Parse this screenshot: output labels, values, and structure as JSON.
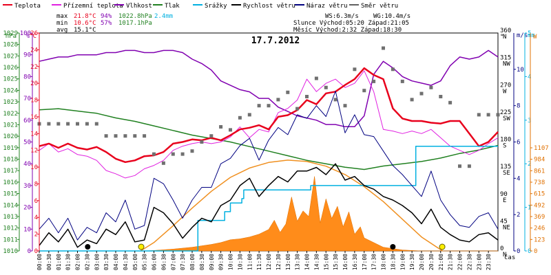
{
  "chart_data": {
    "type": "line",
    "title": "17.7.2012",
    "legend": [
      {
        "label": "Teplota",
        "color": "#e8001c"
      },
      {
        "label": "Přízemní teplota",
        "color": "#e020e0"
      },
      {
        "label": "Vlhkost",
        "color": "#8000b0"
      },
      {
        "label": "Tlak",
        "color": "#208020"
      },
      {
        "label": "Srážky",
        "color": "#00b0e0"
      },
      {
        "label": "Rychlost větru",
        "color": "#000000"
      },
      {
        "label": "Náraz větru",
        "color": "#000080"
      },
      {
        "label": "Směr větru",
        "color": "#606060"
      }
    ],
    "stats": {
      "max_label": "max",
      "max_temp": "21.8°C",
      "max_hum": "94%",
      "max_press": "1022.8hPa",
      "max_rain": "2.4mm",
      "min_label": "min",
      "min_temp": "10.6°C",
      "min_hum": "57%",
      "min_press": "1017.1hPa",
      "avg_label": "avg",
      "avg_temp": "15.1°C",
      "ws": "WS:6.3m/s",
      "wg": "WG:10.4m/s",
      "sun": "Slunce Východ:05:20  Západ:21:05",
      "moon": "Měsíc  Východ:2:32   Západ:18:30"
    },
    "axes": {
      "hpa": {
        "unit": "hPa",
        "min": 1010,
        "max": 1029,
        "ticks": [
          1010,
          1011,
          1012,
          1013,
          1014,
          1015,
          1016,
          1017,
          1018,
          1019,
          1020,
          1021,
          1022,
          1023,
          1024,
          1025,
          1026,
          1027,
          1028,
          1029
        ]
      },
      "pct": {
        "unit": "%",
        "min": 0,
        "max": 100,
        "ticks": [
          0,
          10,
          20,
          30,
          40,
          50,
          60,
          70,
          80,
          90,
          100
        ]
      },
      "temp": {
        "unit": "°C",
        "min": 0,
        "max": 26,
        "ticks": [
          0,
          2,
          4,
          6,
          8,
          10,
          12,
          14,
          16,
          18,
          20,
          22,
          24,
          26
        ]
      },
      "dir": {
        "unit": "°",
        "ticks": [
          {
            "deg": "0",
            "lbl": "N"
          },
          {
            "deg": "45",
            "lbl": "NE"
          },
          {
            "deg": "90",
            "lbl": "E"
          },
          {
            "deg": "135",
            "lbl": "SE"
          },
          {
            "deg": "180",
            "lbl": "S"
          },
          {
            "deg": "225",
            "lbl": "SW"
          },
          {
            "deg": "270",
            "lbl": "W"
          },
          {
            "deg": "315",
            "lbl": "NW"
          },
          {
            "deg": "360",
            "lbl": "N"
          }
        ]
      },
      "wind": {
        "unit": "m/s",
        "min": 0,
        "max": 12,
        "ticks": [
          0,
          2,
          4,
          6,
          8,
          10
        ]
      },
      "rain": {
        "unit": "mm",
        "min": 0,
        "max": 5,
        "ticks": [
          0,
          1,
          2,
          3,
          4,
          5
        ]
      },
      "solar": {
        "unit": "W",
        "ticks": [
          0,
          123,
          246,
          369,
          492,
          615,
          738,
          861,
          984,
          1107
        ]
      },
      "x_label": "čas",
      "x_ticks": [
        "00:00",
        "00:30",
        "01:00",
        "01:30",
        "02:00",
        "02:30",
        "03:00",
        "03:30",
        "04:00",
        "04:30",
        "05:00",
        "05:30",
        "06:00",
        "06:30",
        "07:00",
        "07:30",
        "08:00",
        "08:30",
        "09:00",
        "09:30",
        "10:00",
        "10:30",
        "11:00",
        "11:30",
        "12:00",
        "12:30",
        "13:00",
        "13:30",
        "14:00",
        "14:30",
        "15:00",
        "15:30",
        "16:00",
        "16:30",
        "17:00",
        "17:30",
        "18:00",
        "18:30",
        "19:00",
        "19:30",
        "20:00",
        "20:30",
        "21:00",
        "21:30",
        "22:00",
        "22:30",
        "23:00",
        "23:30"
      ]
    },
    "series": {
      "temperature": {
        "x": [
          0,
          0.5,
          1,
          1.5,
          2,
          2.5,
          3,
          3.5,
          4,
          4.5,
          5,
          5.5,
          6,
          6.5,
          7,
          7.5,
          8,
          8.5,
          9,
          9.5,
          10,
          10.5,
          11,
          11.5,
          12,
          12.5,
          13,
          13.5,
          14,
          14.5,
          15,
          15.5,
          16,
          16.5,
          17,
          17.5,
          18,
          18.5,
          19,
          19.5,
          20,
          20.5,
          21,
          21.5,
          22,
          22.5,
          23,
          23.5,
          24
        ],
        "y": [
          12.5,
          12.8,
          12.3,
          12.8,
          12.3,
          12.1,
          12.4,
          11.8,
          11.0,
          10.6,
          10.8,
          11.3,
          11.4,
          11.8,
          12.8,
          13.0,
          13.3,
          13.2,
          13.5,
          13.2,
          13.8,
          14.5,
          14.7,
          15.0,
          14.5,
          16.0,
          16.2,
          16.8,
          18.0,
          17.5,
          18.8,
          19.0,
          19.8,
          20.5,
          21.8,
          21.0,
          20.5,
          17.0,
          15.8,
          15.5,
          15.5,
          15.3,
          15.2,
          15.5,
          15.5,
          14.0,
          12.5,
          13.0,
          14.2
        ]
      },
      "ground_temperature": {
        "x": [
          0,
          0.5,
          1,
          1.5,
          2,
          2.5,
          3,
          3.5,
          4,
          4.5,
          5,
          5.5,
          6,
          6.5,
          7,
          7.5,
          8,
          8.5,
          9,
          9.5,
          10,
          10.5,
          11,
          11.5,
          12,
          12.5,
          13,
          13.5,
          14,
          14.5,
          15,
          15.5,
          16,
          16.5,
          17,
          17.5,
          18,
          18.5,
          19,
          19.5,
          20,
          20.5,
          21,
          21.5,
          22,
          22.5,
          23,
          23.5,
          24
        ],
        "y": [
          12.0,
          12.8,
          11.8,
          12.2,
          11.5,
          11.3,
          10.8,
          9.6,
          9.2,
          8.7,
          9.0,
          9.8,
          10.2,
          10.8,
          12.0,
          12.5,
          12.8,
          13.0,
          12.8,
          13.0,
          13.6,
          14.8,
          13.5,
          14.5,
          14.2,
          16.5,
          17.0,
          18.0,
          20.5,
          19.0,
          20.0,
          20.5,
          19.5,
          20.0,
          21.5,
          19.0,
          14.5,
          14.3,
          14.0,
          14.3,
          14.0,
          14.5,
          13.5,
          12.5,
          12.0,
          11.5,
          12.0,
          12.8,
          13.5
        ]
      },
      "humidity": {
        "x": [
          0,
          0.5,
          1,
          1.5,
          2,
          2.5,
          3,
          3.5,
          4,
          4.5,
          5,
          5.5,
          6,
          6.5,
          7,
          7.5,
          8,
          8.5,
          9,
          9.5,
          10,
          10.5,
          11,
          11.5,
          12,
          12.5,
          13,
          13.5,
          14,
          14.5,
          15,
          15.5,
          16,
          16.5,
          17,
          17.5,
          18,
          18.5,
          19,
          19.5,
          20,
          20.5,
          21,
          21.5,
          22,
          22.5,
          23,
          23.5,
          24
        ],
        "y": [
          87,
          88,
          89,
          89,
          90,
          90,
          90,
          91,
          91,
          92,
          92,
          91,
          91,
          92,
          92,
          91,
          88,
          86,
          83,
          78,
          76,
          74,
          73,
          70,
          70,
          66,
          64,
          62,
          61,
          60,
          58,
          58,
          57,
          57,
          62,
          81,
          87,
          84,
          80,
          78,
          77,
          76,
          78,
          85,
          89,
          88,
          89,
          92,
          89
        ]
      },
      "pressure": {
        "x": [
          0,
          1,
          2,
          3,
          4,
          5,
          6,
          7,
          8,
          9,
          10,
          11,
          12,
          13,
          14,
          15,
          16,
          17,
          18,
          19,
          20,
          21,
          22,
          23,
          24
        ],
        "y": [
          1022.3,
          1022.4,
          1022.2,
          1022.0,
          1021.6,
          1021.3,
          1020.9,
          1020.5,
          1020.1,
          1019.8,
          1019.5,
          1019.1,
          1018.7,
          1018.3,
          1017.9,
          1017.6,
          1017.3,
          1017.1,
          1017.4,
          1017.6,
          1017.8,
          1018.1,
          1018.5,
          1018.8,
          1019.2
        ]
      },
      "rain_cumulative": {
        "x": [
          0,
          6.2,
          8.3,
          9.7,
          10.0,
          10.6,
          10.7,
          14.0,
          14.2,
          19.5,
          19.7,
          21.0,
          21.2,
          24
        ],
        "y": [
          0,
          0,
          0.7,
          0.9,
          1.1,
          1.2,
          1.4,
          1.4,
          1.5,
          1.5,
          2.4,
          2.4,
          2.4,
          2.4
        ]
      },
      "wind_speed": {
        "x": [
          0,
          0.5,
          1,
          1.5,
          2,
          2.5,
          3,
          3.5,
          4,
          4.5,
          5,
          5.5,
          6,
          6.5,
          7,
          7.5,
          8,
          8.5,
          9,
          9.5,
          10,
          10.5,
          11,
          11.5,
          12,
          12.5,
          13,
          13.5,
          14,
          14.5,
          15,
          15.5,
          16,
          16.5,
          17,
          17.5,
          18,
          18.5,
          19,
          19.5,
          20,
          20.5,
          21,
          21.5,
          22,
          22.5,
          23,
          23.5,
          24
        ],
        "y": [
          0.3,
          1.0,
          0.5,
          1.2,
          0.2,
          0.6,
          0.4,
          1.2,
          0.9,
          1.6,
          0.5,
          0.6,
          2.4,
          2.1,
          1.5,
          0.7,
          1.3,
          1.8,
          1.6,
          2.5,
          2.8,
          3.6,
          4.0,
          3.0,
          3.6,
          4.1,
          3.8,
          4.4,
          4.4,
          4.6,
          4.2,
          4.8,
          3.9,
          4.1,
          3.6,
          3.4,
          3.0,
          2.8,
          2.5,
          2.1,
          1.5,
          2.3,
          1.3,
          0.9,
          0.6,
          0.5,
          0.9,
          1.0,
          0.6
        ]
      },
      "wind_gust": {
        "x": [
          0,
          0.5,
          1,
          1.5,
          2,
          2.5,
          3,
          3.5,
          4,
          4.5,
          5,
          5.5,
          6,
          6.5,
          7,
          7.5,
          8,
          8.5,
          9,
          9.5,
          10,
          10.5,
          11,
          11.5,
          12,
          12.5,
          13,
          13.5,
          14,
          14.5,
          15,
          15.5,
          16,
          16.5,
          17,
          17.5,
          18,
          18.5,
          19,
          19.5,
          20,
          20.5,
          21,
          21.5,
          22,
          22.5,
          23,
          23.5,
          24
        ],
        "y": [
          1.2,
          1.8,
          1.0,
          1.8,
          0.6,
          1.3,
          1.0,
          2.1,
          1.6,
          2.8,
          1.2,
          1.4,
          4.0,
          3.7,
          2.8,
          1.8,
          2.8,
          3.5,
          3.5,
          4.8,
          5.1,
          5.8,
          6.2,
          5.0,
          6.1,
          6.8,
          6.4,
          7.5,
          7.3,
          8.0,
          7.4,
          8.8,
          6.5,
          7.5,
          6.4,
          6.3,
          5.5,
          4.7,
          4.2,
          3.6,
          3.0,
          4.4,
          2.8,
          2.0,
          1.4,
          1.3,
          1.9,
          2.1,
          1.2
        ]
      },
      "wind_direction": {
        "x": [
          0,
          0.5,
          1,
          1.5,
          2,
          2.5,
          3,
          3.5,
          4,
          4.5,
          5,
          5.5,
          6,
          6.5,
          7,
          7.5,
          8,
          8.5,
          9,
          9.5,
          10,
          10.5,
          11,
          11.5,
          12,
          12.5,
          13,
          13.5,
          14,
          14.5,
          15,
          15.5,
          16,
          16.5,
          17,
          17.5,
          18,
          18.5,
          19,
          19.5,
          20,
          20.5,
          21,
          21.5,
          22,
          22.5,
          23,
          23.5,
          24
        ],
        "y": [
          210,
          210,
          210,
          210,
          210,
          210,
          210,
          190,
          190,
          190,
          190,
          190,
          160,
          145,
          160,
          160,
          165,
          180,
          190,
          205,
          200,
          220,
          225,
          240,
          240,
          250,
          262,
          235,
          255,
          285,
          270,
          250,
          240,
          300,
          265,
          280,
          335,
          300,
          280,
          250,
          260,
          270,
          255,
          245,
          140,
          140,
          225,
          225,
          225
        ]
      },
      "solar": {
        "x": [
          0,
          5.5,
          6,
          7,
          8,
          9,
          9.5,
          10,
          10.5,
          11,
          11.5,
          12,
          12.3,
          12.6,
          12.9,
          13.2,
          13.5,
          13.8,
          14.1,
          14.4,
          14.7,
          15,
          15.3,
          15.6,
          15.9,
          16.2,
          16.5,
          16.8,
          17,
          17.5,
          18,
          19,
          20,
          20.5,
          24
        ],
        "y": [
          0,
          0,
          5,
          20,
          40,
          70,
          90,
          120,
          130,
          150,
          180,
          230,
          330,
          200,
          290,
          580,
          320,
          430,
          370,
          800,
          300,
          560,
          350,
          480,
          260,
          420,
          180,
          260,
          140,
          90,
          40,
          10,
          0,
          0,
          0
        ]
      },
      "solar_theoretical": {
        "x": [
          5.3,
          6,
          7,
          8,
          9,
          10,
          11,
          12,
          13,
          14,
          15,
          16,
          17,
          18,
          19,
          20,
          21.1
        ],
        "y": [
          0,
          90,
          270,
          460,
          640,
          790,
          890,
          950,
          975,
          960,
          910,
          820,
          690,
          530,
          340,
          150,
          0
        ]
      }
    },
    "markers": {
      "moonrise": "2:32",
      "moonset": "18:30",
      "sunrise": "05:20",
      "sunset": "21:05"
    }
  }
}
